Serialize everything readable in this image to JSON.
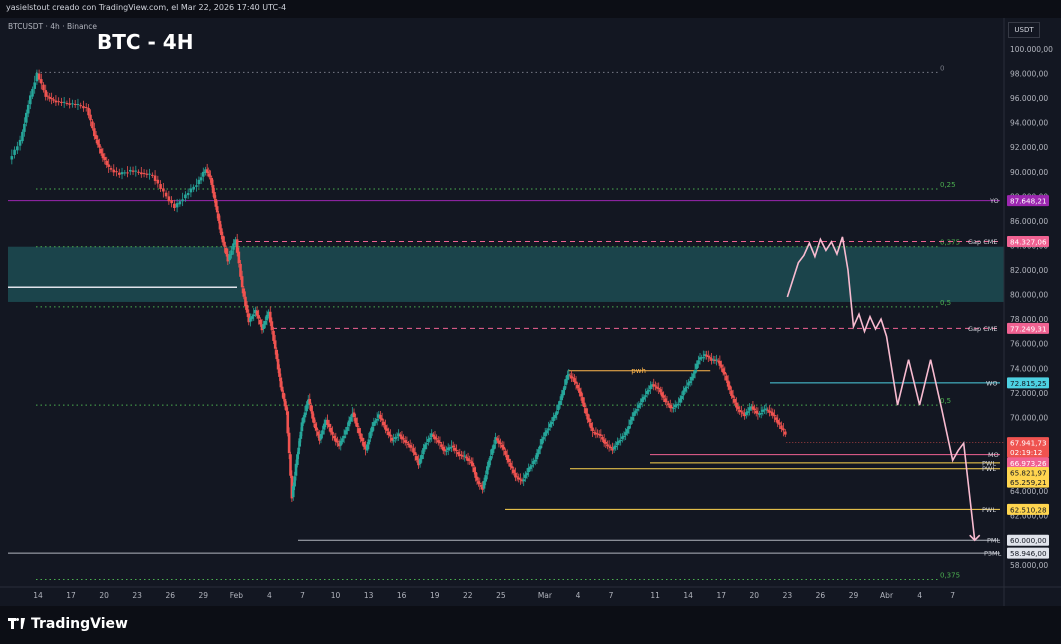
{
  "header": {
    "attribution": "yasielstout creado con TradingView.com, el Mar 22, 2026 17:40 UTC-4"
  },
  "symbol_line": "BTCUSDT · 4h · Binance",
  "title": "BTC - 4H",
  "currency": "USDT",
  "branding": "TradingView",
  "colors": {
    "background": "#131722",
    "up": "#26a69a",
    "down": "#ef5350",
    "projection": "#f8bbd0"
  },
  "chart_data": {
    "type": "candlestick",
    "title": "BTC - 4H",
    "ylim": [
      56000,
      101500
    ],
    "grid": false,
    "x_tick_labels": [
      {
        "label": "14",
        "day": 14
      },
      {
        "label": "17",
        "day": 17
      },
      {
        "label": "20",
        "day": 20
      },
      {
        "label": "23",
        "day": 23
      },
      {
        "label": "26",
        "day": 26
      },
      {
        "label": "29",
        "day": 29
      },
      {
        "label": "Feb",
        "day": 32
      },
      {
        "label": "4",
        "day": 35
      },
      {
        "label": "7",
        "day": 38
      },
      {
        "label": "10",
        "day": 41
      },
      {
        "label": "13",
        "day": 44
      },
      {
        "label": "16",
        "day": 47
      },
      {
        "label": "19",
        "day": 50
      },
      {
        "label": "22",
        "day": 53
      },
      {
        "label": "25",
        "day": 56
      },
      {
        "label": "Mar",
        "day": 60
      },
      {
        "label": "4",
        "day": 63
      },
      {
        "label": "7",
        "day": 66
      },
      {
        "label": "11",
        "day": 70
      },
      {
        "label": "14",
        "day": 73
      },
      {
        "label": "17",
        "day": 76
      },
      {
        "label": "20",
        "day": 79
      },
      {
        "label": "23",
        "day": 82
      },
      {
        "label": "26",
        "day": 85
      },
      {
        "label": "29",
        "day": 88
      },
      {
        "label": "Abr",
        "day": 91
      },
      {
        "label": "4",
        "day": 94
      },
      {
        "label": "7",
        "day": 97
      }
    ],
    "y_tick_labels": [
      "100.000,00",
      "98.000,00",
      "96.000,00",
      "94.000,00",
      "92.000,00",
      "90.000,00",
      "88.000,00",
      "86.000,00",
      "84.000,00",
      "82.000,00",
      "80.000,00",
      "78.000,00",
      "76.000,00",
      "74.000,00",
      "72.000,00",
      "70.000,00",
      "68.000,00",
      "66.000,00",
      "64.000,00",
      "62.000,00",
      "60.000,00",
      "58.000,00"
    ],
    "y_tick_values": [
      100000,
      98000,
      96000,
      94000,
      92000,
      90000,
      88000,
      86000,
      84000,
      82000,
      80000,
      78000,
      76000,
      74000,
      72000,
      70000,
      68000,
      66000,
      64000,
      62000,
      60000,
      58000
    ],
    "price_path": [
      [
        11.5,
        91000
      ],
      [
        12.5,
        92500
      ],
      [
        13.2,
        95500
      ],
      [
        14,
        98000
      ],
      [
        14.8,
        96200
      ],
      [
        15.5,
        95800
      ],
      [
        16.5,
        95600
      ],
      [
        17.5,
        95500
      ],
      [
        18.5,
        95200
      ],
      [
        19.2,
        93000
      ],
      [
        19.8,
        91500
      ],
      [
        20.5,
        90300
      ],
      [
        21.5,
        89800
      ],
      [
        22.5,
        90100
      ],
      [
        23.5,
        89900
      ],
      [
        24.5,
        89700
      ],
      [
        25.5,
        88300
      ],
      [
        26.5,
        87100
      ],
      [
        27.5,
        88100
      ],
      [
        28.5,
        89000
      ],
      [
        29.3,
        90200
      ],
      [
        29.7,
        89500
      ],
      [
        30.2,
        87200
      ],
      [
        30.7,
        84800
      ],
      [
        31.3,
        82800
      ],
      [
        32,
        84500
      ],
      [
        32.6,
        80500
      ],
      [
        33.2,
        77800
      ],
      [
        33.8,
        78700
      ],
      [
        34.4,
        77200
      ],
      [
        35,
        78600
      ],
      [
        35.6,
        75500
      ],
      [
        36.1,
        72500
      ],
      [
        36.6,
        70500
      ],
      [
        37.1,
        63500
      ],
      [
        37.6,
        67000
      ],
      [
        38,
        69500
      ],
      [
        38.6,
        71500
      ],
      [
        39.1,
        69500
      ],
      [
        39.6,
        68200
      ],
      [
        40.2,
        69800
      ],
      [
        40.8,
        68500
      ],
      [
        41.4,
        67700
      ],
      [
        42,
        68900
      ],
      [
        42.6,
        70400
      ],
      [
        43.2,
        68700
      ],
      [
        43.8,
        67300
      ],
      [
        44.4,
        69300
      ],
      [
        45,
        70200
      ],
      [
        45.6,
        69100
      ],
      [
        46.2,
        68100
      ],
      [
        46.8,
        68600
      ],
      [
        47.4,
        68000
      ],
      [
        48,
        67500
      ],
      [
        48.6,
        66200
      ],
      [
        49.2,
        67800
      ],
      [
        49.8,
        68600
      ],
      [
        50.4,
        68000
      ],
      [
        51,
        67200
      ],
      [
        51.6,
        67700
      ],
      [
        52.2,
        67000
      ],
      [
        52.8,
        66800
      ],
      [
        53.4,
        66300
      ],
      [
        53.9,
        64800
      ],
      [
        54.4,
        64200
      ],
      [
        55,
        66500
      ],
      [
        55.6,
        68300
      ],
      [
        56.2,
        67600
      ],
      [
        56.8,
        66300
      ],
      [
        57.4,
        65200
      ],
      [
        58,
        64800
      ],
      [
        58.6,
        65800
      ],
      [
        59.2,
        66600
      ],
      [
        59.8,
        68200
      ],
      [
        60.4,
        69200
      ],
      [
        61,
        70200
      ],
      [
        61.6,
        71800
      ],
      [
        62.1,
        73500
      ],
      [
        62.6,
        73200
      ],
      [
        63.2,
        72100
      ],
      [
        63.8,
        70300
      ],
      [
        64.4,
        68800
      ],
      [
        65,
        68600
      ],
      [
        65.6,
        67800
      ],
      [
        66.2,
        67400
      ],
      [
        66.8,
        68100
      ],
      [
        67.4,
        68700
      ],
      [
        68,
        70100
      ],
      [
        68.6,
        71000
      ],
      [
        69.2,
        71900
      ],
      [
        69.8,
        72700
      ],
      [
        70.4,
        72300
      ],
      [
        71,
        71300
      ],
      [
        71.6,
        70700
      ],
      [
        72.2,
        71200
      ],
      [
        72.8,
        72400
      ],
      [
        73.4,
        73200
      ],
      [
        74,
        74700
      ],
      [
        74.6,
        75100
      ],
      [
        75.2,
        74700
      ],
      [
        75.8,
        74600
      ],
      [
        76.4,
        73400
      ],
      [
        77,
        71800
      ],
      [
        77.6,
        70600
      ],
      [
        78.2,
        70200
      ],
      [
        78.8,
        70900
      ],
      [
        79.4,
        70200
      ],
      [
        80,
        70700
      ],
      [
        80.6,
        70400
      ],
      [
        81.2,
        69600
      ],
      [
        81.9,
        68600
      ]
    ],
    "series": [
      {
        "name": "pwh",
        "values": [
          73800
        ]
      },
      {
        "name": "PWL",
        "values": [
          66300
        ]
      },
      {
        "name": "PWL",
        "values": [
          65821.97
        ]
      },
      {
        "name": "PWL",
        "values": [
          62510.28
        ]
      },
      {
        "name": "PML",
        "values": [
          60000
        ]
      },
      {
        "name": "P3ML",
        "values": [
          58946
        ]
      },
      {
        "name": "YO",
        "values": [
          87648.21
        ]
      },
      {
        "name": "Gap CME",
        "values": [
          84327.06
        ]
      },
      {
        "name": "Gap CME",
        "values": [
          77249.31
        ]
      },
      {
        "name": "WO",
        "values": [
          72815.25
        ]
      },
      {
        "name": "MO",
        "values": [
          66973.26
        ]
      }
    ],
    "fib_levels": [
      {
        "label": "0",
        "value": 98100,
        "color": "#787b86"
      },
      {
        "label": "0,25",
        "value": 88600,
        "color": "#4caf50"
      },
      {
        "label": "0,375",
        "value": 83900,
        "color": "#4caf50"
      },
      {
        "label": "0,5",
        "value": 79000,
        "color": "#4caf50"
      },
      {
        "label": "0,5",
        "value": 71000,
        "color": "#4caf50"
      },
      {
        "label": "0,375",
        "value": 56800,
        "color": "#4caf50"
      }
    ],
    "gap_zone": [
      79400,
      83900
    ],
    "horizontal_lines": [
      {
        "label": "YO",
        "value": 87648.21,
        "color": "#9c27b0"
      },
      {
        "label": "Gap CME",
        "value": 84327.06,
        "color": "#f06292",
        "dashed": true
      },
      {
        "label": "Gap CME",
        "value": 77249.31,
        "color": "#f06292",
        "dashed": true
      },
      {
        "label": "WO",
        "value": 72815.25,
        "color": "#4dd0e1"
      },
      {
        "label": "MO",
        "value": 66973.26,
        "color": "#f06292"
      },
      {
        "label": "PWL",
        "value": 66300,
        "color": "#ffd54f"
      },
      {
        "label": "PWL",
        "value": 65821.97,
        "color": "#ffd54f"
      },
      {
        "label": "PWL",
        "value": 62510.28,
        "color": "#ffd54f"
      },
      {
        "label": "PML",
        "value": 60000,
        "color": "#b2b5be"
      },
      {
        "label": "P3ML",
        "value": 58946,
        "color": "#b2b5be"
      }
    ],
    "price_badges": [
      {
        "text": "87.648,21",
        "value": 87648.21,
        "bg": "#9c27b0",
        "fg": "#ffffff"
      },
      {
        "text": "84.327,06",
        "value": 84327.06,
        "bg": "#f06292",
        "fg": "#ffffff"
      },
      {
        "text": "77.249,31",
        "value": 77249.31,
        "bg": "#f06292",
        "fg": "#ffffff"
      },
      {
        "text": "72.815,25",
        "value": 72815.25,
        "bg": "#4dd0e1",
        "fg": "#131722"
      },
      {
        "text": "67.941,73",
        "value": 67941.73,
        "bg": "#ef5350",
        "fg": "#ffffff"
      },
      {
        "text": "02:19:12",
        "value": 67180,
        "bg": "#ef5350",
        "fg": "#ffffff"
      },
      {
        "text": "66.973,26",
        "value": 66300,
        "bg": "#f06292",
        "fg": "#ffffff"
      },
      {
        "text": "65.821,97",
        "value": 65510,
        "bg": "#ffd54f",
        "fg": "#131722"
      },
      {
        "text": "65.259,21",
        "value": 64730,
        "bg": "#ffd54f",
        "fg": "#131722"
      },
      {
        "text": "62.510,28",
        "value": 62510.28,
        "bg": "#ffd54f",
        "fg": "#131722"
      },
      {
        "text": "60.000,00",
        "value": 60000,
        "bg": "#e0e3eb",
        "fg": "#131722"
      },
      {
        "text": "58.946,00",
        "value": 58946,
        "bg": "#e0e3eb",
        "fg": "#131722"
      }
    ],
    "projection_path": [
      [
        82,
        79800
      ],
      [
        83,
        82600
      ],
      [
        83.5,
        83200
      ],
      [
        84,
        84200
      ],
      [
        84.5,
        83100
      ],
      [
        85,
        84500
      ],
      [
        85.5,
        83600
      ],
      [
        86,
        84300
      ],
      [
        86.5,
        83300
      ],
      [
        87,
        84700
      ],
      [
        87.5,
        82000
      ],
      [
        88,
        77400
      ],
      [
        88.5,
        78400
      ],
      [
        89,
        77000
      ],
      [
        89.5,
        78200
      ],
      [
        90,
        77200
      ],
      [
        90.5,
        78000
      ],
      [
        91,
        76600
      ],
      [
        92,
        71000
      ],
      [
        93,
        74700
      ],
      [
        94,
        71000
      ],
      [
        95,
        74700
      ],
      [
        96,
        70700
      ],
      [
        97,
        66500
      ],
      [
        97.5,
        67300
      ],
      [
        98,
        67900
      ],
      [
        99,
        60000
      ]
    ]
  }
}
